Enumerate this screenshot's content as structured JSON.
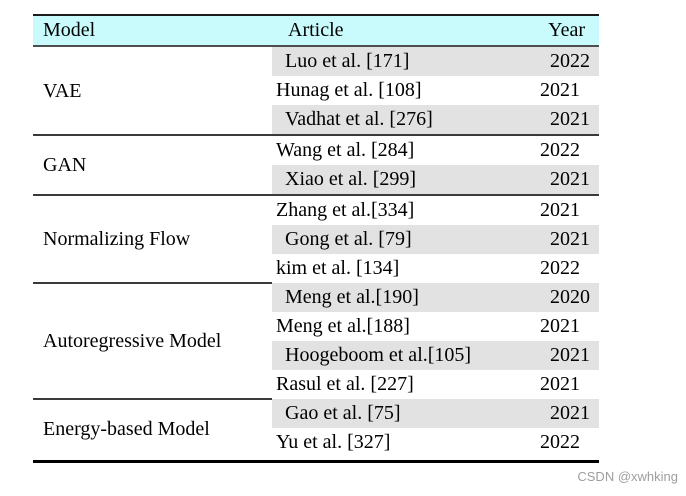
{
  "table": {
    "header": {
      "model": "Model",
      "article": "Article",
      "year": "Year"
    },
    "groups": [
      {
        "model": "VAE",
        "rows": [
          {
            "article": "Luo et al. [171]",
            "year": "2022"
          },
          {
            "article": "Hunag et al. [108]",
            "year": "2021"
          },
          {
            "article": "Vadhat et al. [276]",
            "year": "2021"
          }
        ]
      },
      {
        "model": "GAN",
        "rows": [
          {
            "article": "Wang et al. [284]",
            "year": "2022"
          },
          {
            "article": "Xiao et al. [299]",
            "year": "2021"
          }
        ]
      },
      {
        "model": "Normalizing Flow",
        "rows": [
          {
            "article": "Zhang et al.[334]",
            "year": "2021"
          },
          {
            "article": "Gong et al. [79]",
            "year": "2021"
          },
          {
            "article": "kim et al. [134]",
            "year": "2022"
          }
        ]
      },
      {
        "model": "Autoregressive Model",
        "rows": [
          {
            "article": "Meng et al.[190]",
            "year": "2020"
          },
          {
            "article": "Meng et al.[188]",
            "year": "2021"
          },
          {
            "article": "Hoogeboom et al.[105]",
            "year": "2021"
          },
          {
            "article": "Rasul et al. [227]",
            "year": "2021"
          }
        ]
      },
      {
        "model": "Energy-based Model",
        "rows": [
          {
            "article": "Gao et al. [75]",
            "year": "2021"
          },
          {
            "article": "Yu et al. [327]",
            "year": "2022"
          }
        ]
      }
    ]
  },
  "watermark": {
    "text": "CSDN @xwhking"
  },
  "colors": {
    "header_bg": "#c9fbfd",
    "row_shade_bg": "#e2e2e2",
    "rule_dark": "#1c1c1c",
    "rule_mid": "#3a3a3a",
    "watermark_color": "#9e9e9e"
  }
}
